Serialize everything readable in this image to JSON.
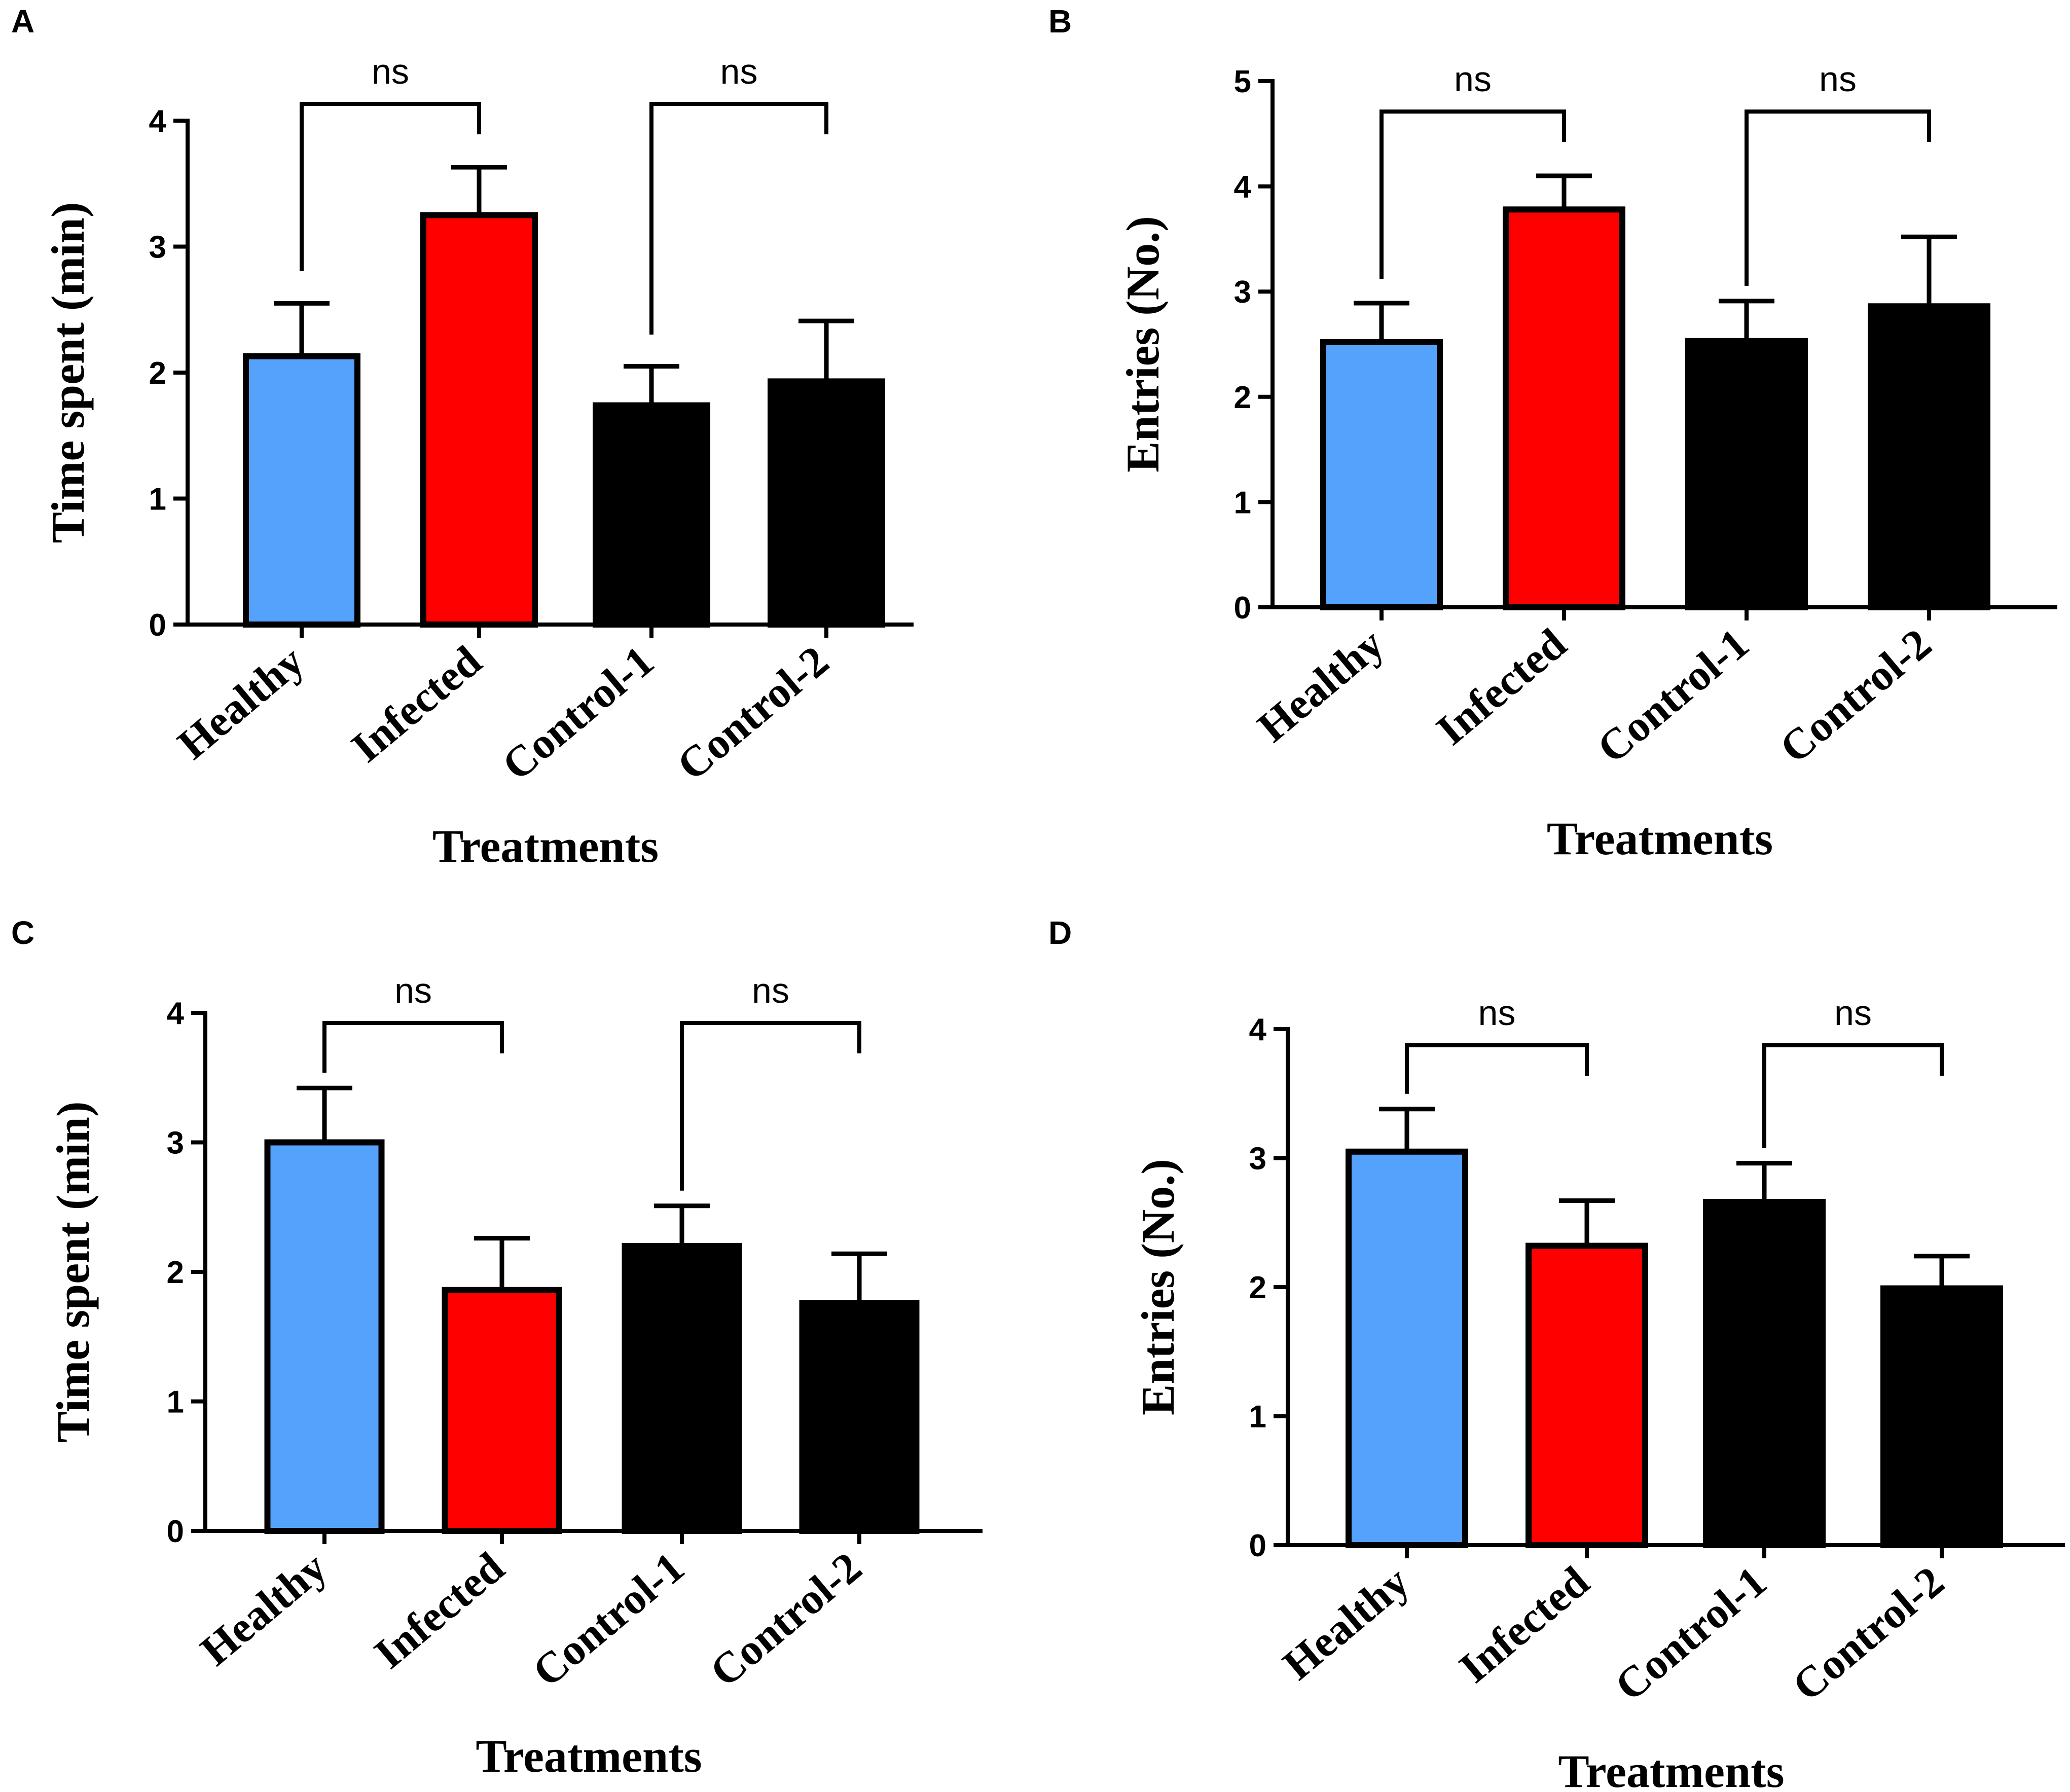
{
  "chart_data": [
    {
      "panel": "A",
      "type": "bar",
      "categories": [
        "Healthy",
        "Infected",
        "Control-1",
        "Control-2"
      ],
      "values": [
        2.13,
        3.25,
        1.74,
        1.93
      ],
      "errors": [
        0.42,
        0.38,
        0.31,
        0.48
      ],
      "ylabel": "Time spent (min)",
      "xlabel": "Treatments",
      "ylim": [
        0,
        4
      ],
      "yticks": [
        0,
        1,
        2,
        3,
        4
      ],
      "comparisons": [
        {
          "groups": [
            "Healthy",
            "Infected"
          ],
          "label": "ns"
        },
        {
          "groups": [
            "Control-1",
            "Control-2"
          ],
          "label": "ns"
        }
      ]
    },
    {
      "panel": "B",
      "type": "bar",
      "categories": [
        "Healthy",
        "Infected",
        "Control-1",
        "Control-2"
      ],
      "values": [
        2.52,
        3.78,
        2.53,
        2.86
      ],
      "errors": [
        0.37,
        0.32,
        0.38,
        0.66
      ],
      "ylabel": "Entries (No.)",
      "xlabel": "Treatments",
      "ylim": [
        0,
        5
      ],
      "yticks": [
        0,
        1,
        2,
        3,
        4,
        5
      ],
      "comparisons": [
        {
          "groups": [
            "Healthy",
            "Infected"
          ],
          "label": "ns"
        },
        {
          "groups": [
            "Control-1",
            "Control-2"
          ],
          "label": "ns"
        }
      ]
    },
    {
      "panel": "C",
      "type": "bar",
      "categories": [
        "Healthy",
        "Infected",
        "Control-1",
        "Control-2"
      ],
      "values": [
        3.0,
        1.86,
        2.2,
        1.76
      ],
      "errors": [
        0.42,
        0.4,
        0.31,
        0.38
      ],
      "ylabel": "Time spent (min)",
      "xlabel": "Treatments",
      "ylim": [
        0,
        4
      ],
      "yticks": [
        0,
        1,
        2,
        3,
        4
      ],
      "comparisons": [
        {
          "groups": [
            "Healthy",
            "Infected"
          ],
          "label": "ns"
        },
        {
          "groups": [
            "Control-1",
            "Control-2"
          ],
          "label": "ns"
        }
      ]
    },
    {
      "panel": "D",
      "type": "bar",
      "categories": [
        "Healthy",
        "Infected",
        "Control-1",
        "Control-2"
      ],
      "values": [
        3.05,
        2.32,
        2.66,
        1.99
      ],
      "errors": [
        0.33,
        0.35,
        0.3,
        0.25
      ],
      "ylabel": "Entries (No.)",
      "xlabel": "Treatments",
      "ylim": [
        0,
        4
      ],
      "yticks": [
        0,
        1,
        2,
        3,
        4
      ],
      "comparisons": [
        {
          "groups": [
            "Healthy",
            "Infected"
          ],
          "label": "ns"
        },
        {
          "groups": [
            "Control-1",
            "Control-2"
          ],
          "label": "ns"
        }
      ]
    }
  ],
  "colors": {
    "healthy": "#55a2fc",
    "infected": "#ff0000",
    "control": "#000000",
    "axis": "#000000"
  }
}
